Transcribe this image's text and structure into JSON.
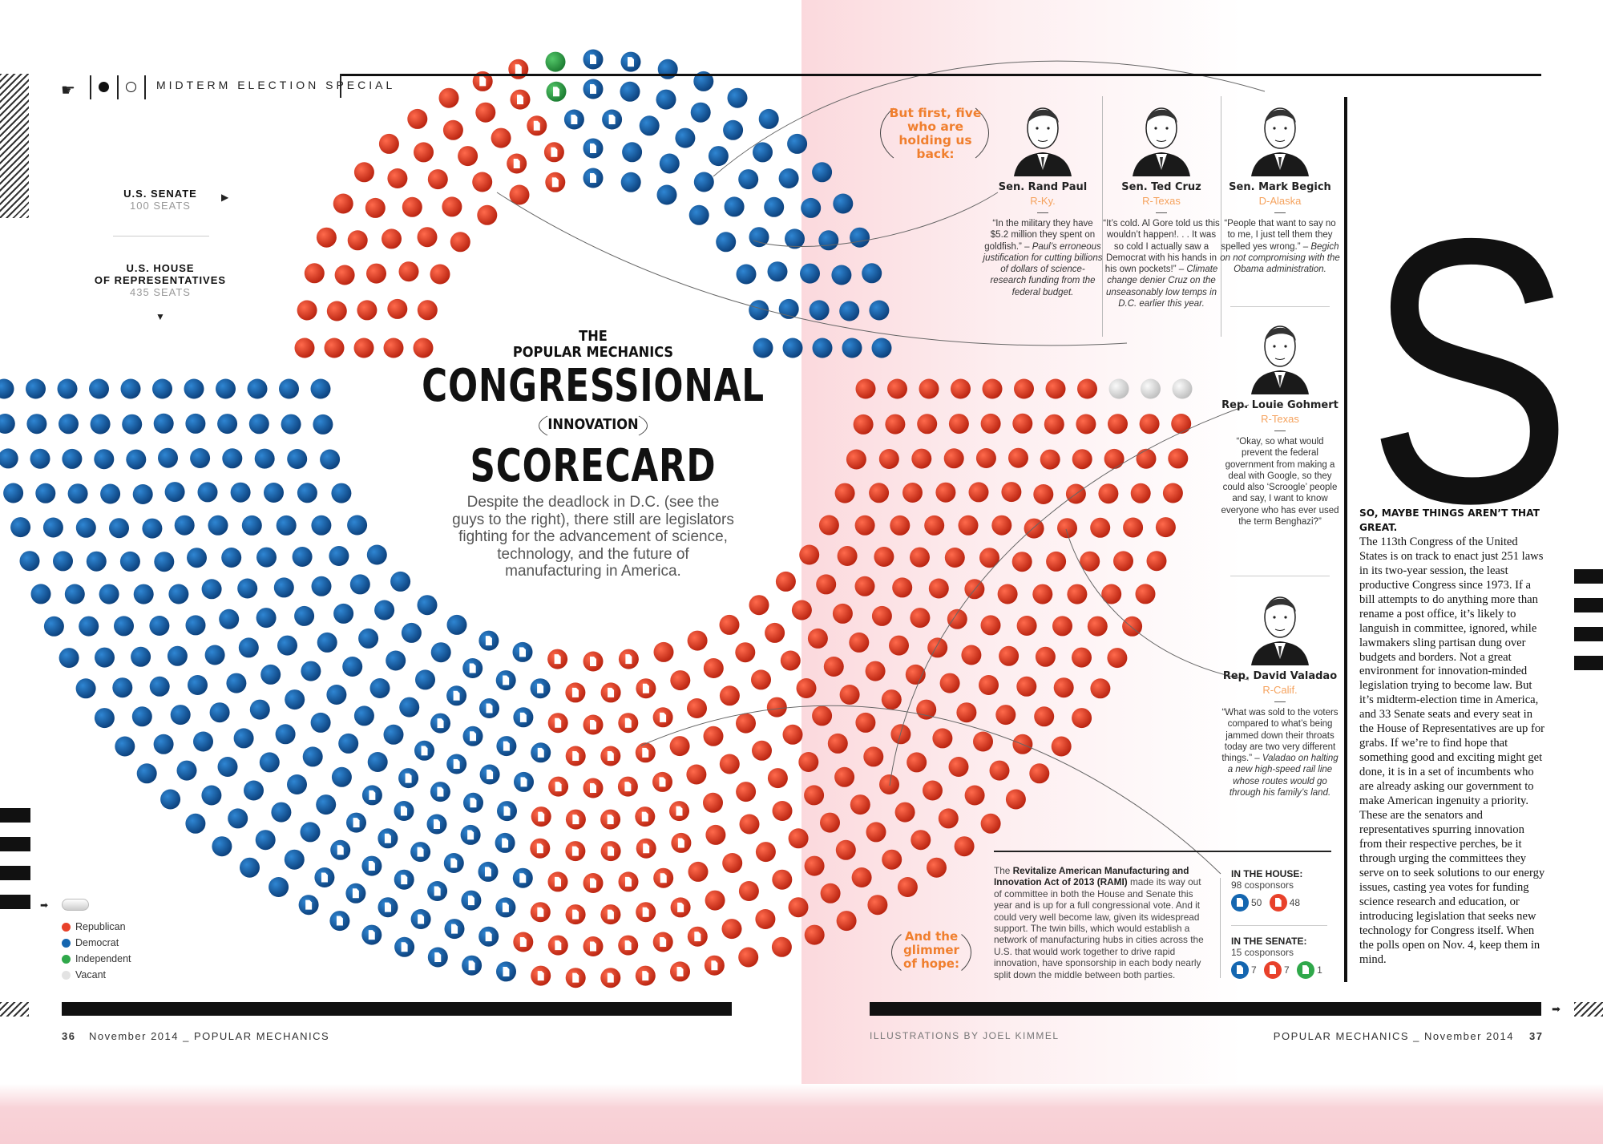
{
  "header": {
    "section": "MIDTERM ELECTION SPECIAL",
    "icons": [
      "pointing-hand-icon",
      "filled-circle-icon",
      "open-circle-icon"
    ]
  },
  "senate": {
    "label": "U.S. SENATE",
    "seats_label": "100 SEATS"
  },
  "house": {
    "label_1": "U.S. HOUSE",
    "label_2": "OF REPRESENTATIVES",
    "seats_label": "435 SEATS"
  },
  "title": {
    "the": "THE",
    "brand": "POPULAR MECHANICS",
    "word1": "CONGRESSIONAL",
    "middle": "INNOVATION",
    "word2": "SCORECARD"
  },
  "subtitle": "Despite the deadlock in D.C. (see the guys to the right), there still are legislators fighting for the advancement of science, technology, and the future of manufacturing in America.",
  "intro_callout": "But first, five who are holding us back:",
  "politicians": [
    {
      "name": "Sen. Rand Paul",
      "party": "R-Ky.",
      "quote": "“In the military they have $5.2 million they spent on goldfish.” –",
      "note": "Paul’s erroneous justification for cutting billions of dollars of science-research funding from the federal budget."
    },
    {
      "name": "Sen. Ted Cruz",
      "party": "R-Texas",
      "quote": "“It’s cold. Al Gore told us this wouldn’t happen!. . . It was so cold I actually saw a Democrat with his hands in his own pockets!” –",
      "note": "Climate change denier Cruz on the unseasonably low temps in D.C. earlier this year."
    },
    {
      "name": "Sen. Mark Begich",
      "party": "D-Alaska",
      "quote": "“People that want to say no to me, I just tell them they spelled yes wrong.” –",
      "note": "Begich on not compromising with the Obama administration."
    },
    {
      "name": "Rep. Louie Gohmert",
      "party": "R-Texas",
      "quote": "“Okay, so what would prevent the federal government from making a deal with Google, so they could also ‘Scroogle’ people and say, I want to know everyone who has ever used the term Benghazi?”",
      "note": ""
    },
    {
      "name": "Rep. David Valadao",
      "party": "R-Calif.",
      "quote": "“What was sold to the voters compared to what’s being jammed down their throats today are two very different things.” –",
      "note": "Valadao on halting a new high-speed rail line whose routes would go through his family’s land."
    }
  ],
  "article": {
    "drop_cap": "S",
    "lead": "SO, MAYBE THINGS AREN’T THAT GREAT.",
    "body": "The 113th Congress of the United States is on track to enact just 251 laws in its two-year session, the least productive Congress since 1973. If a bill attempts to do anything more than rename a post office, it’s likely to languish in committee, ignored, while lawmakers sling partisan dung over budgets and borders. Not a great environment for innovation-minded legislation trying to become law. But it’s midterm-election time in America, and 33 Senate seats and every seat in the House of Representatives are up for grabs. If we’re to find hope that something good and exciting might get done, it is in a set of incumbents who are already asking our government to make American ingenuity a priority. These are the senators and representatives spurring innovation from their respective perches, be it through urging the committees they serve on to seek solutions to our energy issues, casting yea votes for funding science research and education, or introducing legislation that seeks new technology for Congress itself. When the polls open on Nov. 4, keep them in mind."
  },
  "hope": {
    "callout": "And the glimmer of hope:",
    "bill_name": "Revitalize American Manufacturing and Innovation Act of 2013 (RAMI)",
    "text_pre": "The ",
    "text_post": " made its way out of committee in both the House and Senate this year and is up for a full congressional vote. And it could very well become law, given its widespread support. The twin bills, which would establish a network of manufacturing hubs in cities across the U.S. that would work together to drive rapid innovation, have sponsorship in each body nearly split down the middle between both parties.",
    "house_heading": "IN THE HOUSE:",
    "house_total": "98 cosponsors",
    "house_dem": "50",
    "house_rep": "48",
    "senate_heading": "IN THE SENATE:",
    "senate_total": "15 cosponsors",
    "senate_dem": "7",
    "senate_rep": "7",
    "senate_ind": "1"
  },
  "legend": [
    "Republican",
    "Democrat",
    "Independent",
    "Vacant"
  ],
  "colors": {
    "Republican": "#e8412a",
    "Democrat": "#1466b0",
    "Independent": "#2fa84a",
    "Vacant": "#e3e3e3",
    "accent": "#f07f2e",
    "party_label": "#f5a25d"
  },
  "footer": {
    "left_page": "36",
    "left_text": "November 2014 _ POPULAR MECHANICS",
    "credit": "ILLUSTRATIONS BY JOEL KIMMEL",
    "right_text": "POPULAR MECHANICS _ November 2014",
    "right_page": "37"
  },
  "chart_data": [
    {
      "type": "parliament",
      "chamber": "U.S. Senate",
      "total": 100,
      "seats": {
        "Republican": 45,
        "Independent": 2,
        "Democrat": 53
      },
      "cosponsors": {
        "Republican": 7,
        "Democrat": 7,
        "Independent": 1
      }
    },
    {
      "type": "parliament",
      "chamber": "U.S. House of Representatives",
      "total": 435,
      "seats": {
        "Democrat": 199,
        "Republican": 233,
        "Vacant": 3
      },
      "cosponsors": {
        "Democrat": 50,
        "Republican": 48
      }
    }
  ]
}
